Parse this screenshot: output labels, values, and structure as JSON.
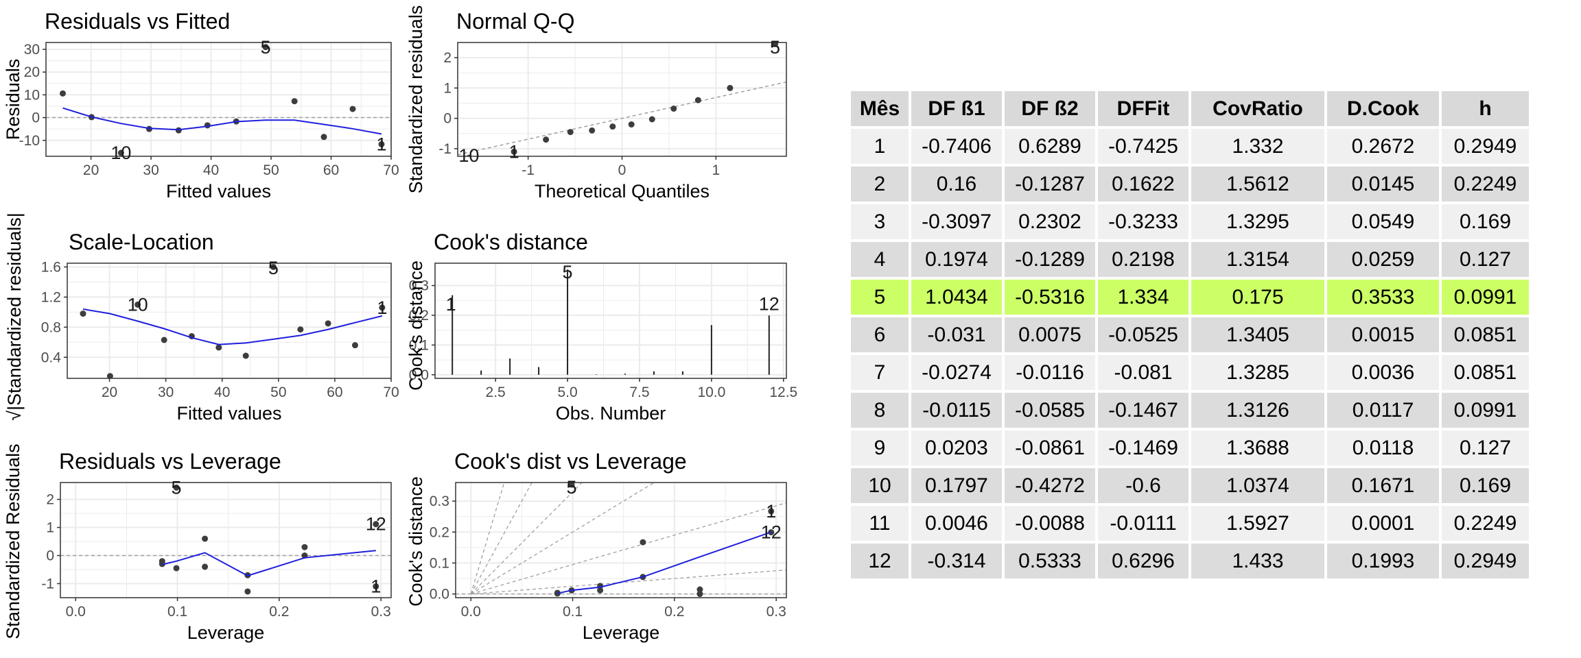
{
  "colors": {
    "point": "#3d3d3d",
    "smooth": "#1f1fdd",
    "reference": "#a0a0a0",
    "highlight": "#ccff66",
    "panel_border": "#333333",
    "grid": "#ebebeb"
  },
  "chart_data": [
    {
      "id": "rvf",
      "type": "scatter",
      "title": "Residuals vs Fitted",
      "xlabel": "Fitted values",
      "ylabel": "Residuals",
      "xlim": [
        12.5,
        70
      ],
      "ylim": [
        -17,
        33
      ],
      "xticks": [
        20,
        30,
        40,
        50,
        60,
        70
      ],
      "yticks": [
        -10,
        0,
        10,
        20,
        30
      ],
      "points": [
        [
          15.3,
          10.6
        ],
        [
          20.1,
          0.2
        ],
        [
          25.0,
          -15.5
        ],
        [
          29.7,
          -5.0
        ],
        [
          34.6,
          -5.6
        ],
        [
          39.4,
          -3.4
        ],
        [
          44.2,
          -1.7
        ],
        [
          49.1,
          31.0
        ],
        [
          53.9,
          7.2
        ],
        [
          58.8,
          -8.5
        ],
        [
          63.6,
          3.8
        ],
        [
          68.4,
          -11.7
        ]
      ],
      "smooth": [
        [
          15.3,
          4.2
        ],
        [
          20.1,
          0.3
        ],
        [
          25.0,
          -2.6
        ],
        [
          29.7,
          -4.7
        ],
        [
          34.6,
          -5.3
        ],
        [
          39.4,
          -3.8
        ],
        [
          44.2,
          -1.8
        ],
        [
          49.1,
          -1.1
        ],
        [
          53.9,
          -1.1
        ],
        [
          58.8,
          -3.0
        ],
        [
          63.6,
          -4.9
        ],
        [
          68.4,
          -7.2
        ]
      ],
      "hline": 0,
      "point_labels": [
        {
          "text": "5",
          "x": 49.1,
          "y": 31.0
        },
        {
          "text": "10",
          "x": 25.0,
          "y": -15.5
        },
        {
          "text": "1",
          "x": 68.4,
          "y": -11.7
        }
      ]
    },
    {
      "id": "qq",
      "type": "scatter",
      "title": "Normal Q-Q",
      "xlabel": "Theoretical Quantiles",
      "ylabel": "Standardized residuals",
      "xlim": [
        -1.75,
        1.75
      ],
      "ylim": [
        -1.25,
        2.5
      ],
      "xticks": [
        -1,
        0,
        1
      ],
      "yticks": [
        -1,
        0,
        1,
        2
      ],
      "points": [
        [
          -1.63,
          -1.3
        ],
        [
          -1.15,
          -1.1
        ],
        [
          -0.81,
          -0.7
        ],
        [
          -0.55,
          -0.45
        ],
        [
          -0.32,
          -0.4
        ],
        [
          -0.1,
          -0.27
        ],
        [
          0.1,
          -0.2
        ],
        [
          0.32,
          -0.03
        ],
        [
          0.55,
          0.32
        ],
        [
          0.81,
          0.6
        ],
        [
          1.15,
          1.0
        ],
        [
          1.63,
          2.45
        ]
      ],
      "refline": [
        [
          -1.75,
          -1.2
        ],
        [
          1.75,
          1.2
        ]
      ],
      "point_labels": [
        {
          "text": "5",
          "x": 1.63,
          "y": 2.45
        },
        {
          "text": "10",
          "x": -1.63,
          "y": -1.3
        },
        {
          "text": "1",
          "x": -1.15,
          "y": -1.1
        }
      ]
    },
    {
      "id": "sl",
      "type": "scatter",
      "title": "Scale-Location",
      "xlabel": "Fitted values",
      "ylabel": "√|Standardized residuals|",
      "xlim": [
        12.5,
        70
      ],
      "ylim": [
        0.12,
        1.65
      ],
      "xticks": [
        20,
        30,
        40,
        50,
        60,
        70
      ],
      "yticks": [
        0.4,
        0.8,
        1.2,
        1.6
      ],
      "points": [
        [
          15.3,
          0.98
        ],
        [
          20.1,
          0.15
        ],
        [
          25.0,
          1.1
        ],
        [
          29.7,
          0.63
        ],
        [
          34.6,
          0.68
        ],
        [
          39.4,
          0.53
        ],
        [
          44.2,
          0.42
        ],
        [
          49.1,
          1.6
        ],
        [
          53.9,
          0.77
        ],
        [
          58.8,
          0.85
        ],
        [
          63.6,
          0.56
        ],
        [
          68.4,
          1.06
        ]
      ],
      "smooth": [
        [
          15.3,
          1.04
        ],
        [
          20.1,
          0.98
        ],
        [
          25.0,
          0.88
        ],
        [
          29.7,
          0.78
        ],
        [
          34.6,
          0.66
        ],
        [
          39.4,
          0.57
        ],
        [
          44.2,
          0.59
        ],
        [
          49.1,
          0.64
        ],
        [
          53.9,
          0.69
        ],
        [
          58.8,
          0.77
        ],
        [
          63.6,
          0.86
        ],
        [
          68.4,
          0.95
        ]
      ],
      "point_labels": [
        {
          "text": "5",
          "x": 49.1,
          "y": 1.6
        },
        {
          "text": "10",
          "x": 25.0,
          "y": 1.1
        },
        {
          "text": "1",
          "x": 68.4,
          "y": 1.06
        }
      ]
    },
    {
      "id": "cd",
      "type": "bar",
      "title": "Cook's distance",
      "xlabel": "Obs. Number",
      "ylabel": "Cook's distance",
      "xlim": [
        0.4,
        12.6
      ],
      "ylim": [
        -0.012,
        0.375
      ],
      "xticks": [
        2.5,
        5.0,
        7.5,
        10.0,
        12.5
      ],
      "yticks": [
        0.0,
        0.1,
        0.2,
        0.3
      ],
      "x": [
        1,
        2,
        3,
        4,
        5,
        6,
        7,
        8,
        9,
        10,
        11,
        12
      ],
      "values": [
        0.2672,
        0.0145,
        0.0549,
        0.0259,
        0.3533,
        0.0015,
        0.0036,
        0.0117,
        0.0118,
        0.1671,
        0.0001,
        0.1993
      ],
      "bar_labels": [
        {
          "text": "1",
          "x": 1,
          "y": 0.2672
        },
        {
          "text": "5",
          "x": 5,
          "y": 0.3533
        },
        {
          "text": "12",
          "x": 12,
          "y": 0.1993
        }
      ]
    },
    {
      "id": "rvl",
      "type": "scatter",
      "title": "Residuals vs Leverage",
      "xlabel": "Leverage",
      "ylabel": "Standardized Residuals",
      "xlim": [
        -0.015,
        0.31
      ],
      "ylim": [
        -1.5,
        2.6
      ],
      "xticks": [
        0.0,
        0.1,
        0.2,
        0.3
      ],
      "yticks": [
        -1,
        0,
        1,
        2
      ],
      "points": [
        [
          0.085,
          -0.2
        ],
        [
          0.085,
          -0.3
        ],
        [
          0.099,
          -0.45
        ],
        [
          0.127,
          0.6
        ],
        [
          0.127,
          -0.4
        ],
        [
          0.169,
          -0.7
        ],
        [
          0.169,
          -1.28
        ],
        [
          0.225,
          0.3
        ],
        [
          0.225,
          0.0
        ],
        [
          0.295,
          -1.1
        ],
        [
          0.295,
          1.12
        ],
        [
          0.099,
          2.42
        ]
      ],
      "smooth": [
        [
          0.085,
          -0.32
        ],
        [
          0.099,
          -0.2
        ],
        [
          0.127,
          0.1
        ],
        [
          0.169,
          -0.72
        ],
        [
          0.225,
          -0.08
        ],
        [
          0.295,
          0.18
        ]
      ],
      "hline": 0,
      "point_labels": [
        {
          "text": "5",
          "x": 0.099,
          "y": 2.42
        },
        {
          "text": "12",
          "x": 0.295,
          "y": 1.12
        },
        {
          "text": "1",
          "x": 0.295,
          "y": -1.1
        }
      ]
    },
    {
      "id": "cdvl",
      "type": "scatter",
      "title": "Cook's dist vs Leverage",
      "xlabel": "Leverage",
      "ylabel": "Cook's distance",
      "xlim": [
        -0.015,
        0.31
      ],
      "ylim": [
        -0.012,
        0.36
      ],
      "xticks": [
        0.0,
        0.1,
        0.2,
        0.3
      ],
      "yticks": [
        0.0,
        0.1,
        0.2,
        0.3
      ],
      "points": [
        [
          0.085,
          0.0015
        ],
        [
          0.085,
          0.0036
        ],
        [
          0.099,
          0.0117
        ],
        [
          0.099,
          0.3533
        ],
        [
          0.127,
          0.0259
        ],
        [
          0.127,
          0.0118
        ],
        [
          0.169,
          0.0549
        ],
        [
          0.169,
          0.1671
        ],
        [
          0.225,
          0.0145
        ],
        [
          0.225,
          0.0001
        ],
        [
          0.295,
          0.2672
        ],
        [
          0.295,
          0.1993
        ]
      ],
      "smooth": [
        [
          0.085,
          0.002
        ],
        [
          0.099,
          0.012
        ],
        [
          0.127,
          0.022
        ],
        [
          0.169,
          0.055
        ],
        [
          0.225,
          0.12
        ],
        [
          0.295,
          0.2
        ]
      ],
      "contour_slopes": [
        0.25,
        0.95,
        2.0,
        3.3,
        6.0,
        11.0
      ],
      "point_labels": [
        {
          "text": "5",
          "x": 0.099,
          "y": 0.3533
        },
        {
          "text": "1",
          "x": 0.295,
          "y": 0.2672
        },
        {
          "text": "12",
          "x": 0.295,
          "y": 0.1993
        }
      ]
    }
  ],
  "table": {
    "headers": [
      "Mês",
      "DF ß1",
      "DF ß2",
      "DFFit",
      "CovRatio",
      "D.Cook",
      "h"
    ],
    "highlight_row": 5,
    "rows": [
      [
        "1",
        "-0.7406",
        "0.6289",
        "-0.7425",
        "1.332",
        "0.2672",
        "0.2949"
      ],
      [
        "2",
        "0.16",
        "-0.1287",
        "0.1622",
        "1.5612",
        "0.0145",
        "0.2249"
      ],
      [
        "3",
        "-0.3097",
        "0.2302",
        "-0.3233",
        "1.3295",
        "0.0549",
        "0.169"
      ],
      [
        "4",
        "0.1974",
        "-0.1289",
        "0.2198",
        "1.3154",
        "0.0259",
        "0.127"
      ],
      [
        "5",
        "1.0434",
        "-0.5316",
        "1.334",
        "0.175",
        "0.3533",
        "0.0991"
      ],
      [
        "6",
        "-0.031",
        "0.0075",
        "-0.0525",
        "1.3405",
        "0.0015",
        "0.0851"
      ],
      [
        "7",
        "-0.0274",
        "-0.0116",
        "-0.081",
        "1.3285",
        "0.0036",
        "0.0851"
      ],
      [
        "8",
        "-0.0115",
        "-0.0585",
        "-0.1467",
        "1.3126",
        "0.0117",
        "0.0991"
      ],
      [
        "9",
        "0.0203",
        "-0.0861",
        "-0.1469",
        "1.3688",
        "0.0118",
        "0.127"
      ],
      [
        "10",
        "0.1797",
        "-0.4272",
        "-0.6",
        "1.0374",
        "0.1671",
        "0.169"
      ],
      [
        "11",
        "0.0046",
        "-0.0088",
        "-0.0111",
        "1.5927",
        "0.0001",
        "0.2249"
      ],
      [
        "12",
        "-0.314",
        "0.5333",
        "0.6296",
        "1.433",
        "0.1993",
        "0.2949"
      ]
    ]
  }
}
